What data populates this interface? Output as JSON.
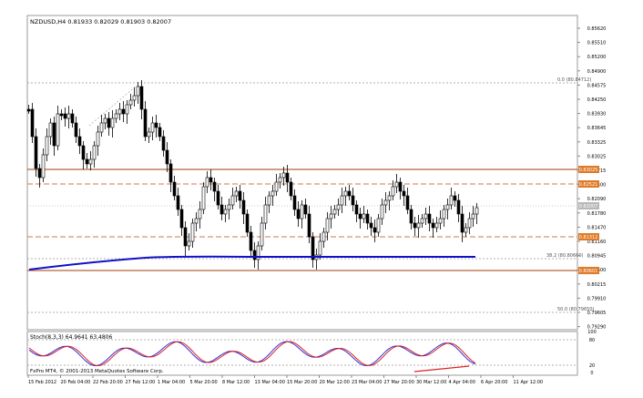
{
  "window": {
    "symbol_line": "NZDUSD,H4  0.81933 0.82029 0.81903 0.82007",
    "stoch_line": "Stoch(8,3,3) 64.9641 63.4806",
    "copyright": "FxPro MT4, © 2001-2013 MetaQuotes Software Corp."
  },
  "price_axis": {
    "labels": [
      "0.85620",
      "0.85510",
      "0.85200",
      "0.84900",
      "0.84575",
      "0.84250",
      "0.83930",
      "0.83645",
      "0.83325",
      "0.83025",
      "0.82715",
      "0.82400",
      "0.82090",
      "0.81780",
      "0.81470",
      "0.81160",
      "0.80945",
      "0.80600",
      "0.80215",
      "0.79910",
      "0.79605",
      "0.79290"
    ],
    "badges": [
      {
        "text": "0.83025",
        "color": "#e07a28"
      },
      {
        "text": "0.82521",
        "color": "#e07a28"
      },
      {
        "text": "0.82007",
        "color": "#b8b8b8"
      },
      {
        "text": "0.81312",
        "color": "#e07a28"
      },
      {
        "text": "0.80601",
        "color": "#e07a28"
      }
    ]
  },
  "fib_labels": {
    "top": "0.0     (80.84712)",
    "mid": "38.2     (80.80660)",
    "bottom": "50.0     (80.79650)"
  },
  "stoch_axis": {
    "labels": [
      "100",
      "80",
      "20",
      "0"
    ]
  },
  "time_axis": {
    "labels": [
      "15 Feb 2012",
      "20 Feb 04:00",
      "22 Feb 20:00",
      "27 Feb 12:00",
      "1 Mar 04:00",
      "5 Mar 20:00",
      "8 Mar 12:00",
      "13 Mar 04:00",
      "15 Mar 20:00",
      "20 Mar 12:00",
      "23 Mar 04:00",
      "27 Mar 20:00",
      "30 Mar 12:00",
      "4 Apr 04:00",
      "6 Apr 20:00",
      "11 Apr 12:00"
    ]
  },
  "colors": {
    "resistance": "#b2633a",
    "fib": "#d07a48",
    "ma": "#1010c8",
    "stoch_main": "#2f2fd8",
    "stoch_signal": "#e02020"
  }
}
